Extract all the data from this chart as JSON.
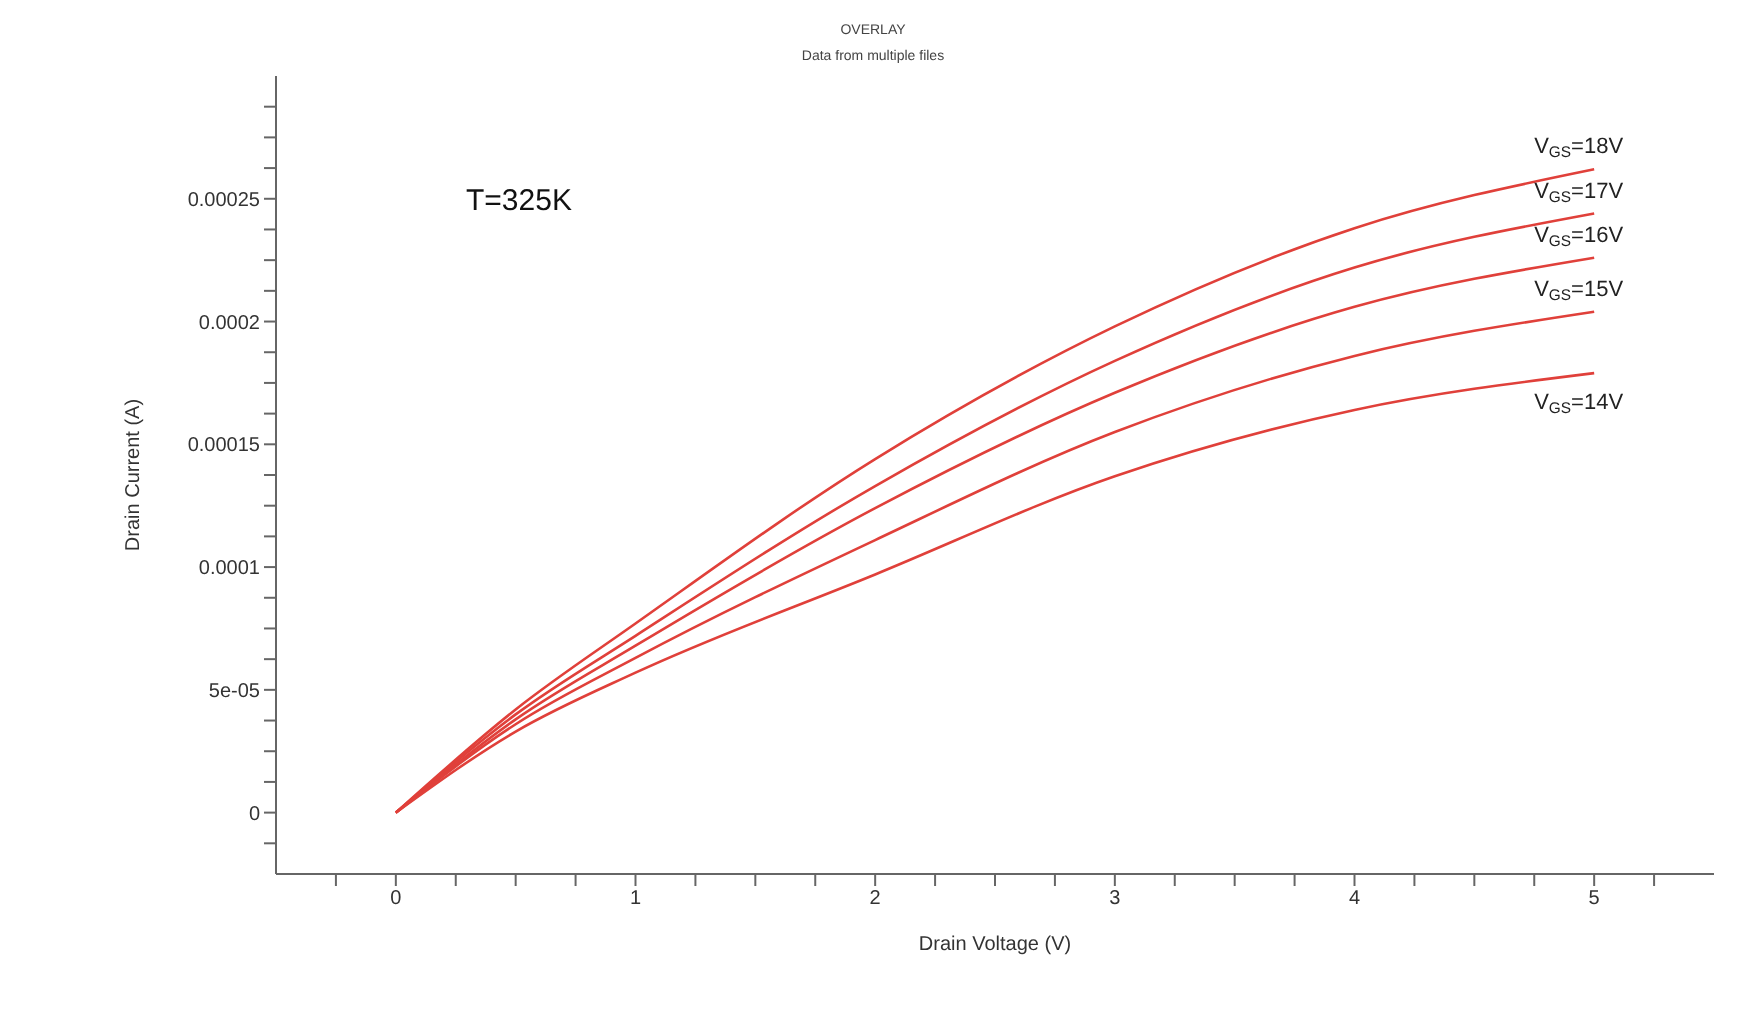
{
  "chart_data": {
    "type": "line",
    "title": "OVERLAY",
    "subtitle": "Data from multiple files",
    "xlabel": "Drain Voltage (V)",
    "ylabel": "Drain Current (A)",
    "annotations": [
      "T=325K"
    ],
    "x": [
      0,
      0.5,
      1,
      2,
      3,
      4,
      5
    ],
    "series": [
      {
        "name": "V$_{GS}$=18V",
        "color": "#e0403a",
        "values": [
          0,
          4.2e-05,
          7.7e-05,
          0.000144,
          0.000198,
          0.000238,
          0.000262
        ]
      },
      {
        "name": "V$_{GS}$=17V",
        "color": "#e0403a",
        "values": [
          0,
          4e-05,
          7.2e-05,
          0.000133,
          0.000184,
          0.000222,
          0.000244
        ]
      },
      {
        "name": "V$_{GS}$=16V",
        "color": "#e0403a",
        "values": [
          0,
          3.8e-05,
          6.8e-05,
          0.000124,
          0.000171,
          0.000206,
          0.000226
        ]
      },
      {
        "name": "V$_{GS}$=15V",
        "color": "#e0403a",
        "values": [
          0,
          3.6e-05,
          6.3e-05,
          0.000111,
          0.000155,
          0.000186,
          0.000204
        ]
      },
      {
        "name": "V$_{GS}$=14V",
        "color": "#e0403a",
        "values": [
          0,
          3.3e-05,
          5.7e-05,
          9.7e-05,
          0.000137,
          0.000164,
          0.000179
        ]
      }
    ],
    "xlim": [
      -0.5,
      5.5
    ],
    "xticks": [
      {
        "value": -0.25,
        "label": null
      },
      0,
      {
        "value": 0.25,
        "label": null
      },
      {
        "value": 0.5,
        "label": null
      },
      {
        "value": 0.75,
        "label": null
      },
      1,
      {
        "value": 1.25,
        "label": null
      },
      {
        "value": 1.5,
        "label": null
      },
      {
        "value": 1.75,
        "label": null
      },
      2,
      {
        "value": 2.25,
        "label": null
      },
      {
        "value": 2.5,
        "label": null
      },
      {
        "value": 2.75,
        "label": null
      },
      3,
      {
        "value": 3.25,
        "label": null
      },
      {
        "value": 3.5,
        "label": null
      },
      {
        "value": 3.75,
        "label": null
      },
      4,
      {
        "value": 4.25,
        "label": null
      },
      {
        "value": 4.5,
        "label": null
      },
      {
        "value": 4.75,
        "label": null
      },
      5,
      {
        "value": 5.25,
        "label": null
      }
    ],
    "ylim": [
      -2.5e-05,
      0.0003
    ],
    "yticks": [
      {
        "value": -1.25e-05,
        "label": null
      },
      0,
      {
        "value": 1.25e-05,
        "label": null
      },
      {
        "value": 2.5e-05,
        "label": null
      },
      {
        "value": 3.75e-05,
        "label": null
      },
      {
        "value": 5e-05,
        "label": "5e-05"
      },
      {
        "value": 6.25e-05,
        "label": null
      },
      {
        "value": 7.5e-05,
        "label": null
      },
      {
        "value": 8.75e-05,
        "label": null
      },
      0.0001,
      {
        "value": 0.0001125,
        "label": null
      },
      {
        "value": 0.000125,
        "label": null
      },
      {
        "value": 0.0001375,
        "label": null
      },
      0.00015,
      {
        "value": 0.0001625,
        "label": null
      },
      {
        "value": 0.000175,
        "label": null
      },
      {
        "value": 0.0001875,
        "label": null
      },
      0.0002,
      {
        "value": 0.0002125,
        "label": null
      },
      {
        "value": 0.000225,
        "label": null
      },
      {
        "value": 0.0002375,
        "label": null
      },
      0.00025,
      {
        "value": 0.0002625,
        "label": null
      },
      {
        "value": 0.000275,
        "label": null
      },
      {
        "value": 0.0002875,
        "label": null
      }
    ],
    "grid": false,
    "legend": false,
    "marker": "none",
    "line_style": "solid"
  }
}
